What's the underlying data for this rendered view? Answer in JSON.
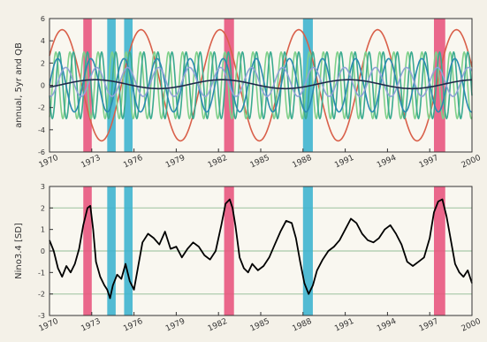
{
  "chart_data": [
    {
      "type": "line",
      "ylabel": "annual, 5yr and QB",
      "xlim": [
        1970,
        2000
      ],
      "ylim": [
        -6,
        6
      ],
      "yticks": [
        -6,
        -4,
        -2,
        0,
        2,
        4,
        6
      ],
      "xtick_labels": [
        "1970",
        "1973",
        "1976",
        "1979",
        "1982",
        "1985",
        "1988",
        "1991",
        "1994",
        "1997",
        "2000"
      ],
      "xtick_values": [
        1970,
        1973,
        1976,
        1979,
        1982,
        1985,
        1988,
        1991,
        1994,
        1997,
        2000
      ],
      "grid": false,
      "highlight_bands": [
        {
          "x0": 1972.4,
          "x1": 1973.0,
          "color": "#e8577f"
        },
        {
          "x0": 1974.1,
          "x1": 1974.7,
          "color": "#3fb4cf"
        },
        {
          "x0": 1975.3,
          "x1": 1975.9,
          "color": "#3fb4cf"
        },
        {
          "x0": 1982.4,
          "x1": 1983.1,
          "color": "#e8577f"
        },
        {
          "x0": 1988.0,
          "x1": 1988.7,
          "color": "#3fb4cf"
        },
        {
          "x0": 1997.3,
          "x1": 1998.1,
          "color": "#e8577f"
        }
      ],
      "series": [
        {
          "color": "#d9604a",
          "kind": "sine",
          "amplitude": 5.0,
          "period_years": 5.6,
          "phase_year": 1969.5,
          "offset": 0
        },
        {
          "color": "#7fd08a",
          "kind": "sine",
          "amplitude": 3.0,
          "period_years": 1.0,
          "phase_year": 1970.2,
          "offset": 0
        },
        {
          "color": "#3aaa8f",
          "kind": "sine",
          "amplitude": 3.0,
          "period_years": 1.0,
          "phase_year": 1970.45,
          "offset": 0
        },
        {
          "color": "#2a8ab0",
          "kind": "sine",
          "amplitude": 2.4,
          "period_years": 2.35,
          "phase_year": 1970.0,
          "offset": 0
        },
        {
          "color": "#8fa3d6",
          "kind": "sine",
          "amplitude": 1.3,
          "period_years": 2.2,
          "phase_year": 1970.6,
          "offset": 0.3
        },
        {
          "color": "#1f2a4a",
          "kind": "sine",
          "amplitude": 0.4,
          "period_years": 9.0,
          "phase_year": 1971.0,
          "offset": 0.1
        }
      ]
    },
    {
      "type": "line",
      "ylabel": "Nino3.4 [SD]",
      "xlim": [
        1970,
        2000
      ],
      "ylim": [
        -3,
        3
      ],
      "yticks": [
        -3,
        -2,
        -1,
        0,
        1,
        2,
        3
      ],
      "xtick_labels": [
        "1970",
        "1973",
        "1976",
        "1979",
        "1982",
        "1985",
        "1988",
        "1991",
        "1994",
        "1997",
        "2000"
      ],
      "xtick_values": [
        1970,
        1973,
        1976,
        1979,
        1982,
        1985,
        1988,
        1991,
        1994,
        1997,
        2000
      ],
      "hlines": [
        -2,
        0,
        2
      ],
      "hline_color": "#a8c8a8",
      "highlight_bands": [
        {
          "x0": 1972.4,
          "x1": 1973.0,
          "color": "#e8577f"
        },
        {
          "x0": 1974.1,
          "x1": 1974.7,
          "color": "#3fb4cf"
        },
        {
          "x0": 1975.3,
          "x1": 1975.9,
          "color": "#3fb4cf"
        },
        {
          "x0": 1982.4,
          "x1": 1983.1,
          "color": "#e8577f"
        },
        {
          "x0": 1988.0,
          "x1": 1988.7,
          "color": "#3fb4cf"
        },
        {
          "x0": 1997.3,
          "x1": 1998.1,
          "color": "#e8577f"
        }
      ],
      "series": [
        {
          "color": "#000000",
          "x": [
            1970.0,
            1970.3,
            1970.6,
            1970.9,
            1971.2,
            1971.5,
            1971.8,
            1972.1,
            1972.4,
            1972.7,
            1972.9,
            1973.1,
            1973.3,
            1973.6,
            1973.9,
            1974.1,
            1974.3,
            1974.5,
            1974.8,
            1975.1,
            1975.4,
            1975.7,
            1976.0,
            1976.3,
            1976.6,
            1977.0,
            1977.4,
            1977.8,
            1978.2,
            1978.6,
            1979.0,
            1979.4,
            1979.8,
            1980.2,
            1980.6,
            1981.0,
            1981.4,
            1981.8,
            1982.2,
            1982.5,
            1982.8,
            1983.0,
            1983.2,
            1983.5,
            1983.8,
            1984.1,
            1984.4,
            1984.8,
            1985.2,
            1985.6,
            1986.0,
            1986.4,
            1986.8,
            1987.2,
            1987.5,
            1987.8,
            1988.1,
            1988.4,
            1988.7,
            1989.0,
            1989.4,
            1989.8,
            1990.2,
            1990.6,
            1991.0,
            1991.4,
            1991.8,
            1992.2,
            1992.6,
            1993.0,
            1993.4,
            1993.8,
            1994.2,
            1994.6,
            1995.0,
            1995.4,
            1995.8,
            1996.2,
            1996.6,
            1997.0,
            1997.3,
            1997.6,
            1997.9,
            1998.2,
            1998.5,
            1998.8,
            1999.1,
            1999.4,
            1999.7,
            2000.0
          ],
          "y": [
            0.5,
            0.0,
            -0.8,
            -1.2,
            -0.7,
            -1.0,
            -0.6,
            0.1,
            1.2,
            2.0,
            2.1,
            1.0,
            -0.5,
            -1.2,
            -1.6,
            -1.8,
            -2.2,
            -1.6,
            -1.1,
            -1.3,
            -0.6,
            -1.4,
            -1.8,
            -0.7,
            0.4,
            0.8,
            0.6,
            0.3,
            0.9,
            0.1,
            0.2,
            -0.3,
            0.1,
            0.4,
            0.2,
            -0.2,
            -0.4,
            0.0,
            1.2,
            2.2,
            2.4,
            2.0,
            1.2,
            -0.3,
            -0.8,
            -1.0,
            -0.6,
            -0.9,
            -0.7,
            -0.3,
            0.3,
            0.9,
            1.4,
            1.3,
            0.6,
            -0.5,
            -1.5,
            -2.0,
            -1.6,
            -0.9,
            -0.4,
            0.0,
            0.2,
            0.5,
            1.0,
            1.5,
            1.3,
            0.8,
            0.5,
            0.4,
            0.6,
            1.0,
            1.2,
            0.8,
            0.3,
            -0.5,
            -0.7,
            -0.5,
            -0.3,
            0.6,
            1.8,
            2.3,
            2.4,
            1.6,
            0.5,
            -0.6,
            -1.0,
            -1.2,
            -0.9,
            -1.5
          ]
        }
      ]
    }
  ]
}
